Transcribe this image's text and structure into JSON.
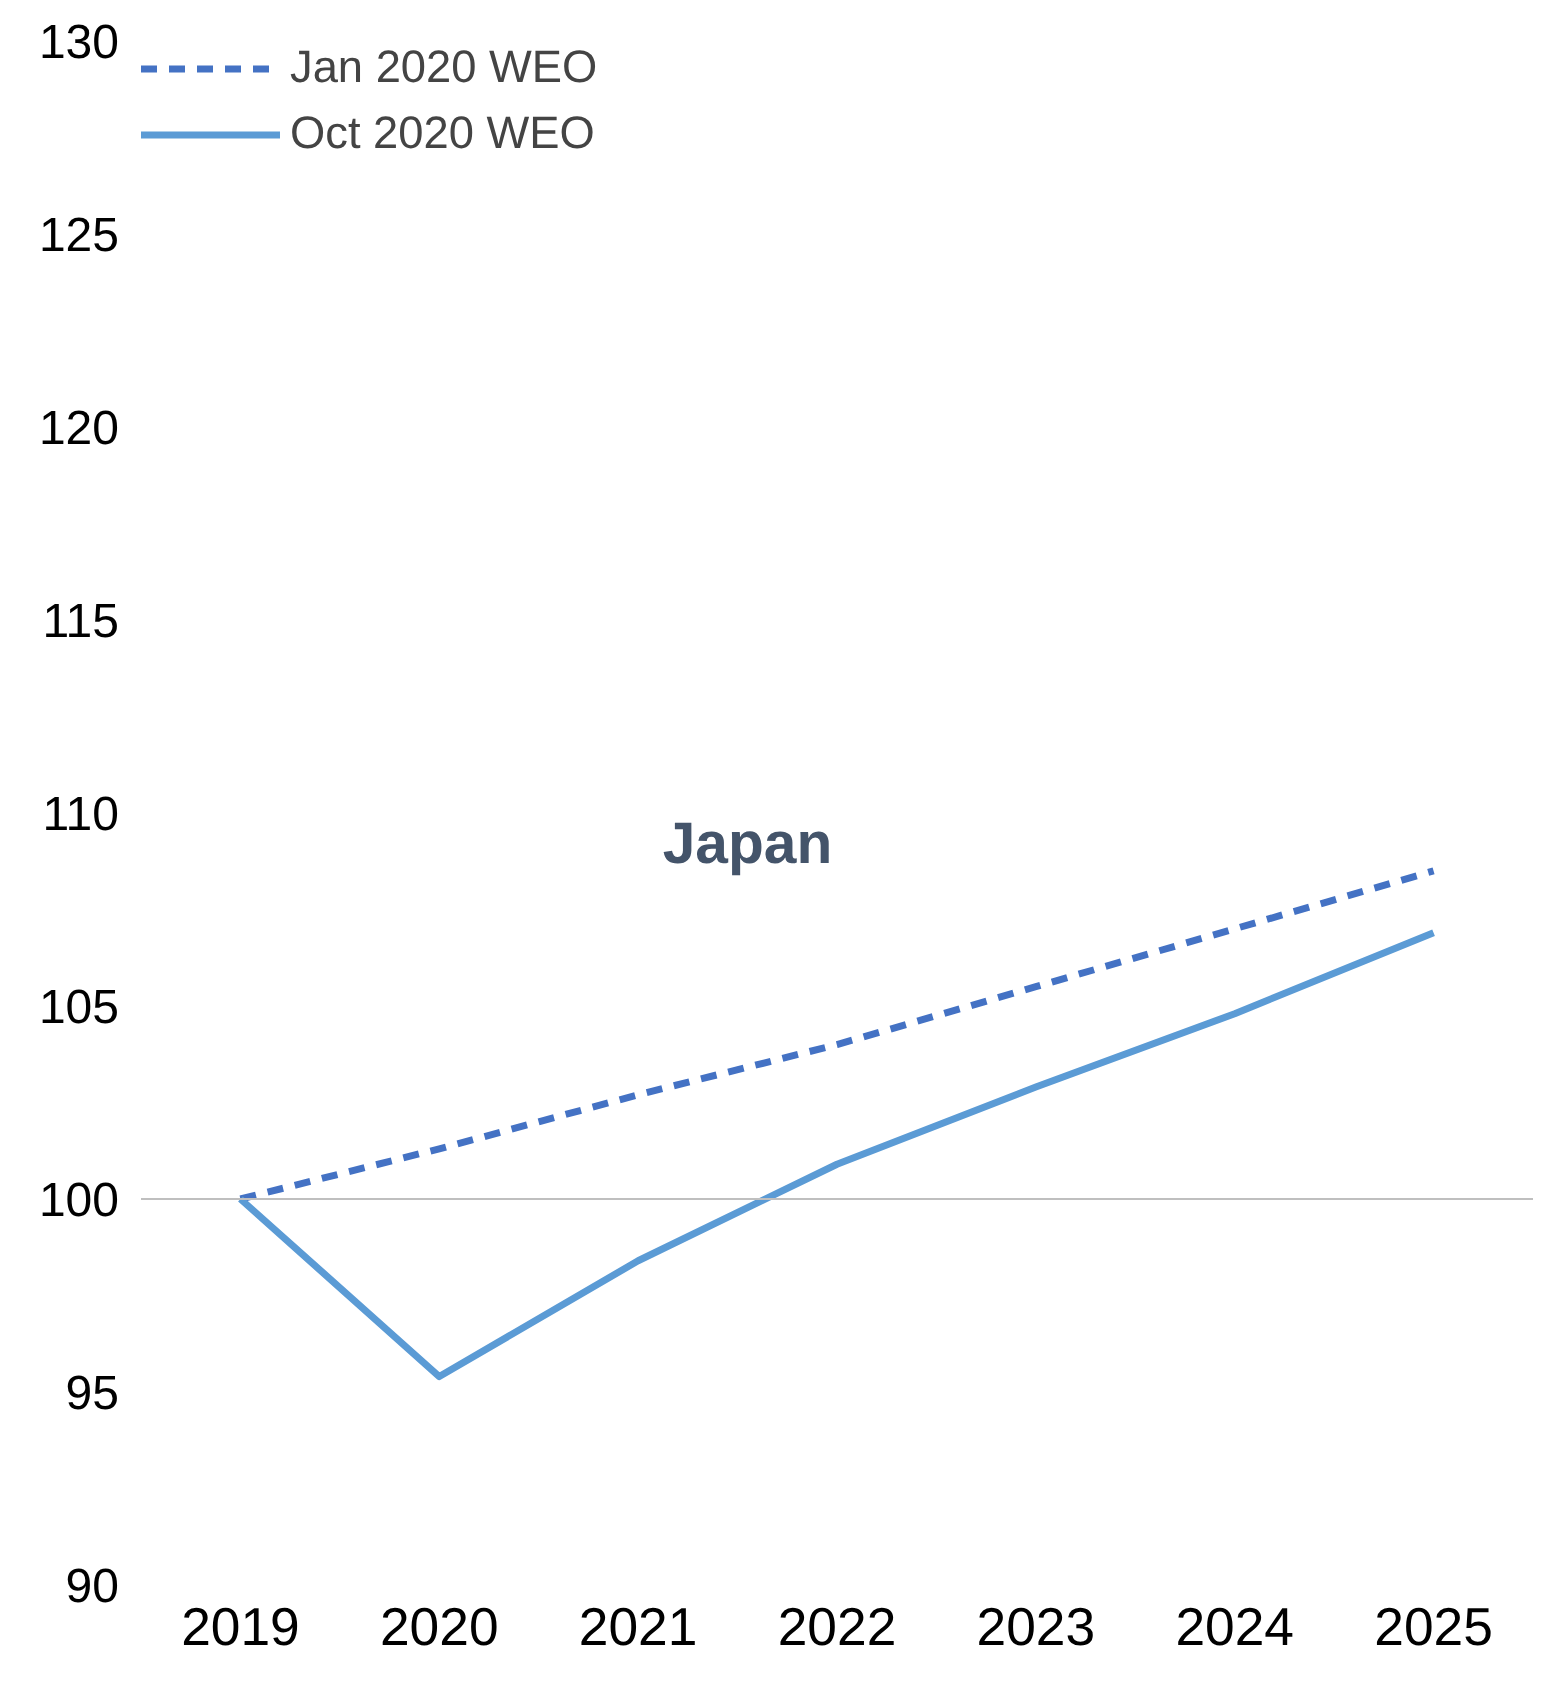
{
  "chart_data": {
    "type": "line",
    "title": "Japan",
    "categories": [
      "2019",
      "2020",
      "2021",
      "2022",
      "2023",
      "2024",
      "2025"
    ],
    "series": [
      {
        "name": "Jan 2020 WEO",
        "color": "#4472c4",
        "line_style": "dashed",
        "values": [
          100,
          101.3,
          102.7,
          104.0,
          105.5,
          107.0,
          108.5
        ]
      },
      {
        "name": "Oct 2020 WEO",
        "color": "#5b9bd5",
        "line_style": "solid",
        "values": [
          100,
          95.4,
          98.4,
          100.9,
          102.9,
          104.8,
          106.9
        ]
      }
    ],
    "ylim": [
      90,
      130
    ],
    "yticks": [
      90,
      95,
      100,
      105,
      110,
      115,
      120,
      125,
      130
    ],
    "ref_lines": [
      {
        "axis": "y",
        "value": 100,
        "color": "#bfbfbf"
      }
    ],
    "grid": false,
    "legend": "top left",
    "marker": "none"
  }
}
